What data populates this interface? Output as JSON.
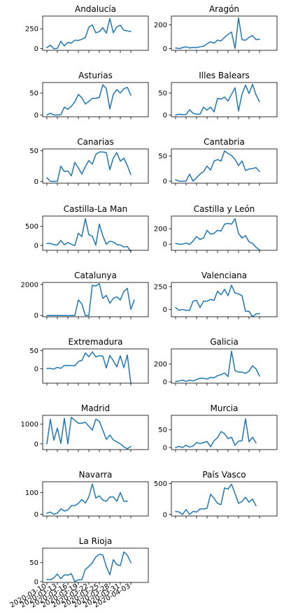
{
  "colors": {
    "line": "#1f77b4"
  },
  "chart_data": [
    {
      "type": "line",
      "title": "Andalucía",
      "yticks": [
        0,
        250
      ],
      "ylim": [
        -20,
        410
      ],
      "values": [
        14,
        45,
        0,
        5,
        95,
        35,
        80,
        70,
        108,
        103,
        120,
        140,
        270,
        300,
        200,
        215,
        265,
        195,
        380,
        200,
        275,
        295,
        232,
        225,
        215
      ]
    },
    {
      "type": "line",
      "title": "Aragón",
      "yticks": [
        0,
        200
      ],
      "ylim": [
        -15,
        275
      ],
      "values": [
        5,
        0,
        8,
        15,
        5,
        10,
        8,
        15,
        20,
        40,
        58,
        45,
        72,
        65,
        95,
        120,
        140,
        0,
        260,
        75,
        70,
        95,
        110,
        75,
        80
      ]
    },
    {
      "type": "line",
      "title": "Asturias",
      "yticks": [
        0,
        50
      ],
      "ylim": [
        -4,
        74
      ],
      "values": [
        0,
        4,
        0,
        0,
        1,
        18,
        13,
        20,
        30,
        47,
        39,
        25,
        31,
        38,
        38,
        40,
        69,
        60,
        14,
        47,
        58,
        50,
        60,
        63,
        45
      ]
    },
    {
      "type": "line",
      "title": "Illes Balears",
      "yticks": [
        0,
        50
      ],
      "ylim": [
        -4,
        74
      ],
      "values": [
        0,
        2,
        1,
        1,
        12,
        4,
        2,
        2,
        18,
        11,
        18,
        7,
        38,
        36,
        41,
        32,
        47,
        62,
        9,
        48,
        68,
        49,
        70,
        46,
        30
      ]
    },
    {
      "type": "line",
      "title": "Canarias",
      "yticks": [
        0,
        50
      ],
      "ylim": [
        -3,
        53
      ],
      "values": [
        6,
        0,
        0,
        0,
        25,
        16,
        17,
        9,
        31,
        22,
        12,
        24,
        34,
        28,
        44,
        48,
        48,
        47,
        19,
        38,
        47,
        33,
        38,
        26,
        11
      ]
    },
    {
      "type": "line",
      "title": "Cantabria",
      "yticks": [
        0,
        50
      ],
      "ylim": [
        -4,
        64
      ],
      "values": [
        3,
        0,
        0,
        0,
        14,
        0,
        7,
        14,
        19,
        30,
        22,
        40,
        43,
        40,
        60,
        55,
        51,
        43,
        31,
        40,
        21,
        24,
        25,
        27,
        19
      ]
    },
    {
      "type": "line",
      "title": "Castilla-La Man",
      "yticks": [
        0,
        500
      ],
      "ylim": [
        -130,
        770
      ],
      "values": [
        50,
        50,
        20,
        10,
        130,
        15,
        75,
        30,
        -5,
        320,
        230,
        700,
        280,
        240,
        5,
        560,
        250,
        30,
        110,
        90,
        20,
        10,
        -40,
        -30,
        -160
      ]
    },
    {
      "type": "line",
      "title": "Castilla y León",
      "yticks": [
        0,
        200
      ],
      "ylim": [
        -80,
        365
      ],
      "values": [
        10,
        0,
        0,
        15,
        -5,
        40,
        100,
        60,
        80,
        180,
        130,
        140,
        180,
        170,
        260,
        270,
        260,
        330,
        140,
        80,
        110,
        30,
        10,
        -40,
        -75
      ]
    },
    {
      "type": "line",
      "title": "Catalunya",
      "yticks": [
        0,
        2000
      ],
      "ylim": [
        -80,
        2130
      ],
      "values": [
        0,
        0,
        0,
        0,
        0,
        0,
        0,
        0,
        0,
        1000,
        750,
        0,
        0,
        1950,
        1900,
        2050,
        1100,
        1300,
        800,
        1100,
        1200,
        1000,
        1550,
        1750,
        400,
        1000
      ]
    },
    {
      "type": "line",
      "title": "Valenciana",
      "yticks": [
        0,
        250
      ],
      "ylim": [
        -80,
        295
      ],
      "values": [
        20,
        -10,
        0,
        -10,
        -10,
        90,
        100,
        20,
        90,
        90,
        110,
        100,
        200,
        160,
        220,
        150,
        265,
        180,
        170,
        150,
        -20,
        -20,
        -80,
        -50,
        -45
      ]
    },
    {
      "type": "line",
      "title": "Extremadura",
      "yticks": [
        0,
        50
      ],
      "ylim": [
        -40,
        55
      ],
      "values": [
        1,
        1,
        -1,
        4,
        1,
        9,
        9,
        9,
        8,
        20,
        23,
        44,
        33,
        47,
        33,
        36,
        35,
        2,
        37,
        22,
        5,
        36,
        3,
        38,
        -40
      ]
    },
    {
      "type": "line",
      "title": "Galicia",
      "yticks": [
        0,
        200
      ],
      "ylim": [
        -15,
        370
      ],
      "values": [
        5,
        10,
        20,
        5,
        20,
        10,
        25,
        40,
        40,
        30,
        50,
        45,
        70,
        80,
        100,
        60,
        345,
        125,
        110,
        110,
        95,
        120,
        180,
        145,
        65
      ]
    },
    {
      "type": "line",
      "title": "Madrid",
      "yticks": [
        0,
        1000
      ],
      "ylim": [
        -290,
        1450
      ],
      "values": [
        0,
        1250,
        180,
        800,
        20,
        1300,
        0,
        1350,
        1200,
        1050,
        1050,
        1100,
        900,
        700,
        1250,
        1150,
        700,
        230,
        450,
        200,
        100,
        0,
        -150,
        -250,
        -130
      ]
    },
    {
      "type": "line",
      "title": "Murcia",
      "yticks": [
        0,
        50
      ],
      "ylim": [
        -6,
        91
      ],
      "values": [
        0,
        3,
        0,
        6,
        1,
        4,
        14,
        11,
        14,
        17,
        2,
        19,
        28,
        45,
        39,
        25,
        29,
        6,
        18,
        19,
        81,
        16,
        29,
        13
      ]
    },
    {
      "type": "line",
      "title": "Navarra",
      "yticks": [
        0,
        100
      ],
      "ylim": [
        -8,
        150
      ],
      "values": [
        5,
        10,
        0,
        5,
        25,
        15,
        20,
        40,
        40,
        50,
        68,
        52,
        80,
        140,
        75,
        85,
        65,
        60,
        80,
        80,
        60,
        100,
        60,
        60
      ]
    },
    {
      "type": "line",
      "title": "País Vasco",
      "yticks": [
        0,
        500
      ],
      "ylim": [
        -25,
        530
      ],
      "values": [
        50,
        40,
        0,
        80,
        0,
        50,
        40,
        90,
        90,
        100,
        330,
        260,
        180,
        160,
        430,
        410,
        490,
        340,
        180,
        210,
        280,
        200,
        250,
        140
      ]
    },
    {
      "type": "line",
      "title": "La Rioja",
      "yticks": [
        0,
        50
      ],
      "ylim": [
        -2,
        88
      ],
      "values": [
        6,
        5,
        10,
        20,
        8,
        18,
        17,
        21,
        0,
        5,
        5,
        32,
        40,
        50,
        65,
        72,
        70,
        40,
        18,
        58,
        45,
        42,
        78,
        70,
        50
      ]
    }
  ],
  "x_tick_labels": [
    "2020-03-10",
    "2020-03-13",
    "2020-03-16",
    "2020-03-19",
    "2020-03-22",
    "2020-03-25",
    "2020-03-28",
    "2020-03-31",
    "2020-04-03"
  ]
}
